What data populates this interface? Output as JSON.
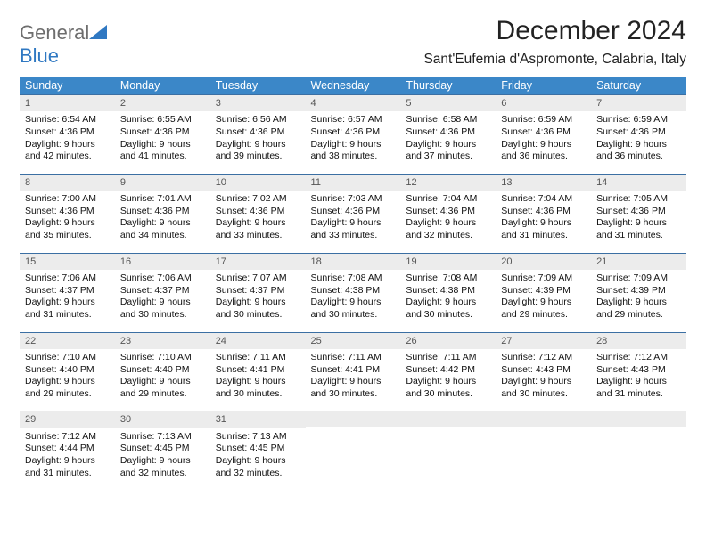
{
  "logo": {
    "word1": "General",
    "word2": "Blue",
    "shape_color": "#2f78c2",
    "text1_color": "#6e6e6e",
    "text2_color": "#2f78c2"
  },
  "title": "December 2024",
  "location": "Sant'Eufemia d'Aspromonte, Calabria, Italy",
  "header_bg": "#3b87c8",
  "daynum_bg": "#ececec",
  "row_border": "#3b6fa3",
  "weekdays": [
    "Sunday",
    "Monday",
    "Tuesday",
    "Wednesday",
    "Thursday",
    "Friday",
    "Saturday"
  ],
  "weeks": [
    [
      {
        "n": "1",
        "sr": "6:54 AM",
        "ss": "4:36 PM",
        "dl": "9 hours and 42 minutes."
      },
      {
        "n": "2",
        "sr": "6:55 AM",
        "ss": "4:36 PM",
        "dl": "9 hours and 41 minutes."
      },
      {
        "n": "3",
        "sr": "6:56 AM",
        "ss": "4:36 PM",
        "dl": "9 hours and 39 minutes."
      },
      {
        "n": "4",
        "sr": "6:57 AM",
        "ss": "4:36 PM",
        "dl": "9 hours and 38 minutes."
      },
      {
        "n": "5",
        "sr": "6:58 AM",
        "ss": "4:36 PM",
        "dl": "9 hours and 37 minutes."
      },
      {
        "n": "6",
        "sr": "6:59 AM",
        "ss": "4:36 PM",
        "dl": "9 hours and 36 minutes."
      },
      {
        "n": "7",
        "sr": "6:59 AM",
        "ss": "4:36 PM",
        "dl": "9 hours and 36 minutes."
      }
    ],
    [
      {
        "n": "8",
        "sr": "7:00 AM",
        "ss": "4:36 PM",
        "dl": "9 hours and 35 minutes."
      },
      {
        "n": "9",
        "sr": "7:01 AM",
        "ss": "4:36 PM",
        "dl": "9 hours and 34 minutes."
      },
      {
        "n": "10",
        "sr": "7:02 AM",
        "ss": "4:36 PM",
        "dl": "9 hours and 33 minutes."
      },
      {
        "n": "11",
        "sr": "7:03 AM",
        "ss": "4:36 PM",
        "dl": "9 hours and 33 minutes."
      },
      {
        "n": "12",
        "sr": "7:04 AM",
        "ss": "4:36 PM",
        "dl": "9 hours and 32 minutes."
      },
      {
        "n": "13",
        "sr": "7:04 AM",
        "ss": "4:36 PM",
        "dl": "9 hours and 31 minutes."
      },
      {
        "n": "14",
        "sr": "7:05 AM",
        "ss": "4:36 PM",
        "dl": "9 hours and 31 minutes."
      }
    ],
    [
      {
        "n": "15",
        "sr": "7:06 AM",
        "ss": "4:37 PM",
        "dl": "9 hours and 31 minutes."
      },
      {
        "n": "16",
        "sr": "7:06 AM",
        "ss": "4:37 PM",
        "dl": "9 hours and 30 minutes."
      },
      {
        "n": "17",
        "sr": "7:07 AM",
        "ss": "4:37 PM",
        "dl": "9 hours and 30 minutes."
      },
      {
        "n": "18",
        "sr": "7:08 AM",
        "ss": "4:38 PM",
        "dl": "9 hours and 30 minutes."
      },
      {
        "n": "19",
        "sr": "7:08 AM",
        "ss": "4:38 PM",
        "dl": "9 hours and 30 minutes."
      },
      {
        "n": "20",
        "sr": "7:09 AM",
        "ss": "4:39 PM",
        "dl": "9 hours and 29 minutes."
      },
      {
        "n": "21",
        "sr": "7:09 AM",
        "ss": "4:39 PM",
        "dl": "9 hours and 29 minutes."
      }
    ],
    [
      {
        "n": "22",
        "sr": "7:10 AM",
        "ss": "4:40 PM",
        "dl": "9 hours and 29 minutes."
      },
      {
        "n": "23",
        "sr": "7:10 AM",
        "ss": "4:40 PM",
        "dl": "9 hours and 29 minutes."
      },
      {
        "n": "24",
        "sr": "7:11 AM",
        "ss": "4:41 PM",
        "dl": "9 hours and 30 minutes."
      },
      {
        "n": "25",
        "sr": "7:11 AM",
        "ss": "4:41 PM",
        "dl": "9 hours and 30 minutes."
      },
      {
        "n": "26",
        "sr": "7:11 AM",
        "ss": "4:42 PM",
        "dl": "9 hours and 30 minutes."
      },
      {
        "n": "27",
        "sr": "7:12 AM",
        "ss": "4:43 PM",
        "dl": "9 hours and 30 minutes."
      },
      {
        "n": "28",
        "sr": "7:12 AM",
        "ss": "4:43 PM",
        "dl": "9 hours and 31 minutes."
      }
    ],
    [
      {
        "n": "29",
        "sr": "7:12 AM",
        "ss": "4:44 PM",
        "dl": "9 hours and 31 minutes."
      },
      {
        "n": "30",
        "sr": "7:13 AM",
        "ss": "4:45 PM",
        "dl": "9 hours and 32 minutes."
      },
      {
        "n": "31",
        "sr": "7:13 AM",
        "ss": "4:45 PM",
        "dl": "9 hours and 32 minutes."
      },
      null,
      null,
      null,
      null
    ]
  ],
  "labels": {
    "sunrise": "Sunrise:",
    "sunset": "Sunset:",
    "daylight": "Daylight:"
  }
}
